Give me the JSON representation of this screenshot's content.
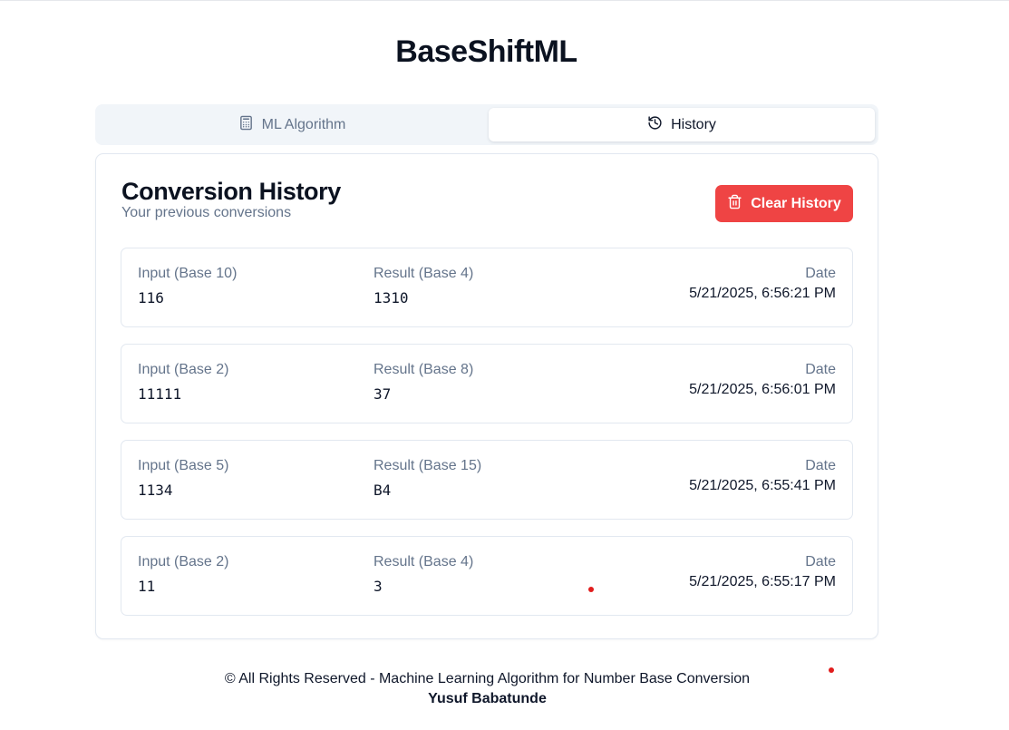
{
  "app": {
    "title": "BaseShiftML"
  },
  "tabs": [
    {
      "label": "ML Algorithm",
      "icon": "calculator-icon",
      "active": false
    },
    {
      "label": "History",
      "icon": "history-icon",
      "active": true
    }
  ],
  "history": {
    "title": "Conversion History",
    "subtitle": "Your previous conversions",
    "clear_label": "Clear History",
    "date_label": "Date",
    "entries": [
      {
        "input_label": "Input (Base 10)",
        "input": "116",
        "result_label": "Result (Base 4)",
        "result": "1310",
        "date": "5/21/2025, 6:56:21 PM"
      },
      {
        "input_label": "Input (Base 2)",
        "input": "11111",
        "result_label": "Result (Base 8)",
        "result": "37",
        "date": "5/21/2025, 6:56:01 PM"
      },
      {
        "input_label": "Input (Base 5)",
        "input": "1134",
        "result_label": "Result (Base 15)",
        "result": "B4",
        "date": "5/21/2025, 6:55:41 PM"
      },
      {
        "input_label": "Input (Base 2)",
        "input": "11",
        "result_label": "Result (Base 4)",
        "result": "3",
        "date": "5/21/2025, 6:55:17 PM"
      }
    ]
  },
  "footer": {
    "rights": "© All Rights Reserved - Machine Learning Algorithm for Number Base Conversion",
    "author": "Yusuf Babatunde"
  },
  "colors": {
    "danger": "#ef4444",
    "muted": "#64748b",
    "tab_bg": "#f1f5f9"
  }
}
